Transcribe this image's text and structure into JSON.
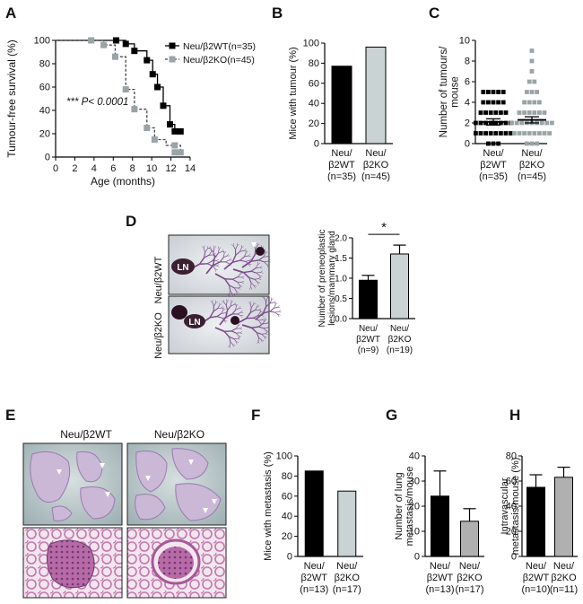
{
  "panels": {
    "A": "A",
    "B": "B",
    "C": "C",
    "D": "D",
    "E": "E",
    "F": "F",
    "G": "G",
    "H": "H"
  },
  "colors": {
    "wt": "#000000",
    "ko": "#9aa3a6",
    "koBar": "#c9d3d3",
    "grey": "#b0b0b0"
  },
  "chart_data": [
    {
      "id": "A",
      "type": "line",
      "title": "",
      "xlabel": "Age (months)",
      "ylabel": "Tumour-free survival (%)",
      "xlim": [
        0,
        14
      ],
      "ylim": [
        0,
        100
      ],
      "xticks": [
        "0",
        "2",
        "4",
        "6",
        "8",
        "10",
        "12",
        "14"
      ],
      "yticks": [
        "0",
        "20",
        "40",
        "60",
        "80",
        "100"
      ],
      "annotation": "*** P< 0.0001",
      "series": [
        {
          "name": "Neu/β2WT(n=35)",
          "style": "solid",
          "marker": "square",
          "x": [
            0,
            6.3,
            7.3,
            8.2,
            9.5,
            10.1,
            10.6,
            11.2,
            11.9,
            12.4,
            13.0,
            13.3
          ],
          "y": [
            100,
            100,
            97,
            91,
            83,
            71,
            60,
            44,
            28,
            22,
            22,
            22
          ],
          "marker_points": [
            [
              6.3,
              100
            ],
            [
              7.3,
              97
            ],
            [
              8.2,
              91
            ],
            [
              9.5,
              83
            ],
            [
              10.1,
              71
            ],
            [
              10.6,
              60
            ],
            [
              11.2,
              44
            ],
            [
              11.9,
              28
            ],
            [
              12.4,
              22
            ],
            [
              13.0,
              22
            ]
          ]
        },
        {
          "name": "Neu/β2KO(n=45)",
          "style": "dashed",
          "marker": "square",
          "x": [
            0,
            3.7,
            5.0,
            6.2,
            7.3,
            8.2,
            9.5,
            10.3,
            11.5,
            12.4,
            13.0
          ],
          "y": [
            100,
            100,
            96,
            86,
            58,
            41,
            25,
            15,
            10,
            10,
            4
          ],
          "marker_points": [
            [
              3.7,
              100
            ],
            [
              5.0,
              96
            ],
            [
              6.2,
              86
            ],
            [
              7.3,
              58
            ],
            [
              8.2,
              41
            ],
            [
              9.5,
              25
            ],
            [
              10.3,
              15
            ],
            [
              12.4,
              10
            ],
            [
              12.4,
              4
            ],
            [
              13.0,
              4
            ]
          ]
        }
      ]
    },
    {
      "id": "B",
      "type": "bar",
      "ylabel": "Mice with tumour (%)",
      "ylim": [
        0,
        100
      ],
      "yticks": [
        "0",
        "20",
        "40",
        "60",
        "80",
        "100"
      ],
      "categories": [
        [
          "Neu/",
          "β2WT",
          "(n=35)"
        ],
        [
          "Neu/",
          "β2KO",
          "(n=45)"
        ]
      ],
      "values": [
        77,
        96
      ]
    },
    {
      "id": "C",
      "type": "scatter",
      "ylabel": "Number of tumours/ mouse",
      "ylim": [
        0,
        10
      ],
      "yticks": [
        "0",
        "2",
        "4",
        "6",
        "8",
        "10"
      ],
      "categories": [
        [
          "Neu/",
          "β2WT",
          "(n=35)"
        ],
        [
          "Neu/",
          "β2KO",
          "(n=45)"
        ]
      ],
      "groups": [
        {
          "name": "Neu/β2WT",
          "means": 2.1,
          "sem": 0.3,
          "counts": {
            "1": 8,
            "2": 8,
            "3": 6,
            "4": 5,
            "5": 5,
            "0": 3
          }
        },
        {
          "name": "Neu/β2KO",
          "means": 2.3,
          "sem": 0.3,
          "counts": {
            "0": 3,
            "1": 8,
            "2": 9,
            "3": 6,
            "4": 4,
            "5": 3,
            "6": 2,
            "7": 1,
            "8": 1,
            "9": 1
          }
        }
      ]
    },
    {
      "id": "D",
      "type": "bar",
      "ylabel": "Number of preneoplastic lesions/mammary gland",
      "ylim": [
        0,
        2.0
      ],
      "yticks": [
        "0.0",
        "0.5",
        "1.0",
        "1.5",
        "2.0"
      ],
      "categories": [
        [
          "Neu/",
          "β2WT",
          "(n=9)"
        ],
        [
          "Neu/",
          "β2KO",
          "(n=19)"
        ]
      ],
      "values": [
        0.95,
        1.6
      ],
      "errors": [
        0.12,
        0.22
      ],
      "significance": "*"
    },
    {
      "id": "F",
      "type": "bar",
      "ylabel": "Mice with metastasis (%)",
      "ylim": [
        0,
        100
      ],
      "yticks": [
        "0",
        "20",
        "40",
        "60",
        "80",
        "100"
      ],
      "categories": [
        [
          "Neu/",
          "β2WT",
          "(n=13)"
        ],
        [
          "Neu/",
          "β2KO",
          "(n=17)"
        ]
      ],
      "values": [
        85,
        65
      ]
    },
    {
      "id": "G",
      "type": "bar",
      "ylabel": "Number of lung metastasis/mouse",
      "ylim": [
        0,
        40
      ],
      "yticks": [
        "0",
        "10",
        "20",
        "30",
        "40"
      ],
      "categories": [
        [
          "Neu/",
          "β2WT",
          "(n=13)"
        ],
        [
          "Neu/",
          "β2KO",
          "(n=17)"
        ]
      ],
      "values": [
        24,
        14
      ],
      "errors": [
        10,
        5
      ]
    },
    {
      "id": "H",
      "type": "bar",
      "ylabel": "Intravascular metastasis/mouse (%)",
      "ylim": [
        0,
        80
      ],
      "yticks": [
        "0",
        "20",
        "40",
        "60",
        "80"
      ],
      "categories": [
        [
          "Neu/",
          "β2WT",
          "(n=10)"
        ],
        [
          "Neu/",
          "β2KO",
          "(n=11)"
        ]
      ],
      "values": [
        55,
        63
      ],
      "errors": [
        10,
        8
      ]
    }
  ],
  "images": {
    "D": {
      "rows": [
        "Neu/β2WT",
        "Neu/β2KO"
      ],
      "ln_label": "LN"
    },
    "E": {
      "cols": [
        "Neu/β2WT",
        "Neu/β2KO"
      ]
    }
  }
}
